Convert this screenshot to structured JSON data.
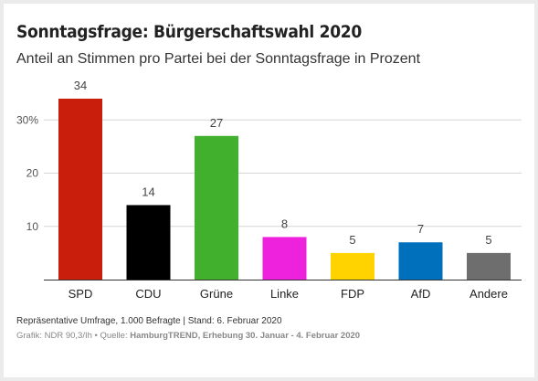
{
  "chart_data": {
    "type": "bar",
    "title": "Sonntagsfrage: Bürgerschaftswahl 2020",
    "subtitle": "Anteil an Stimmen pro Partei bei der Sonntagsfrage in Prozent",
    "categories": [
      "SPD",
      "CDU",
      "Grüne",
      "Linke",
      "FDP",
      "AfD",
      "Andere"
    ],
    "values": [
      34,
      14,
      27,
      8,
      5,
      7,
      5
    ],
    "colors": [
      "#c81e0b",
      "#000000",
      "#41b02c",
      "#ee21dc",
      "#fed300",
      "#006fbc",
      "#6e6e6e"
    ],
    "ylim": [
      0,
      34
    ],
    "yticks": [
      10,
      20,
      30
    ],
    "ytick_labels": [
      "10",
      "20",
      "30%"
    ],
    "grid": true,
    "note": "Repräsentative Umfrage, 1.000 Befragte | Stand: 6. Februar 2020",
    "source_prefix": "Grafik: NDR 90,3/Ih • Quelle: ",
    "source_bold": "HamburgTREND, Erhebung 30. Januar - 4. Februar 2020"
  }
}
